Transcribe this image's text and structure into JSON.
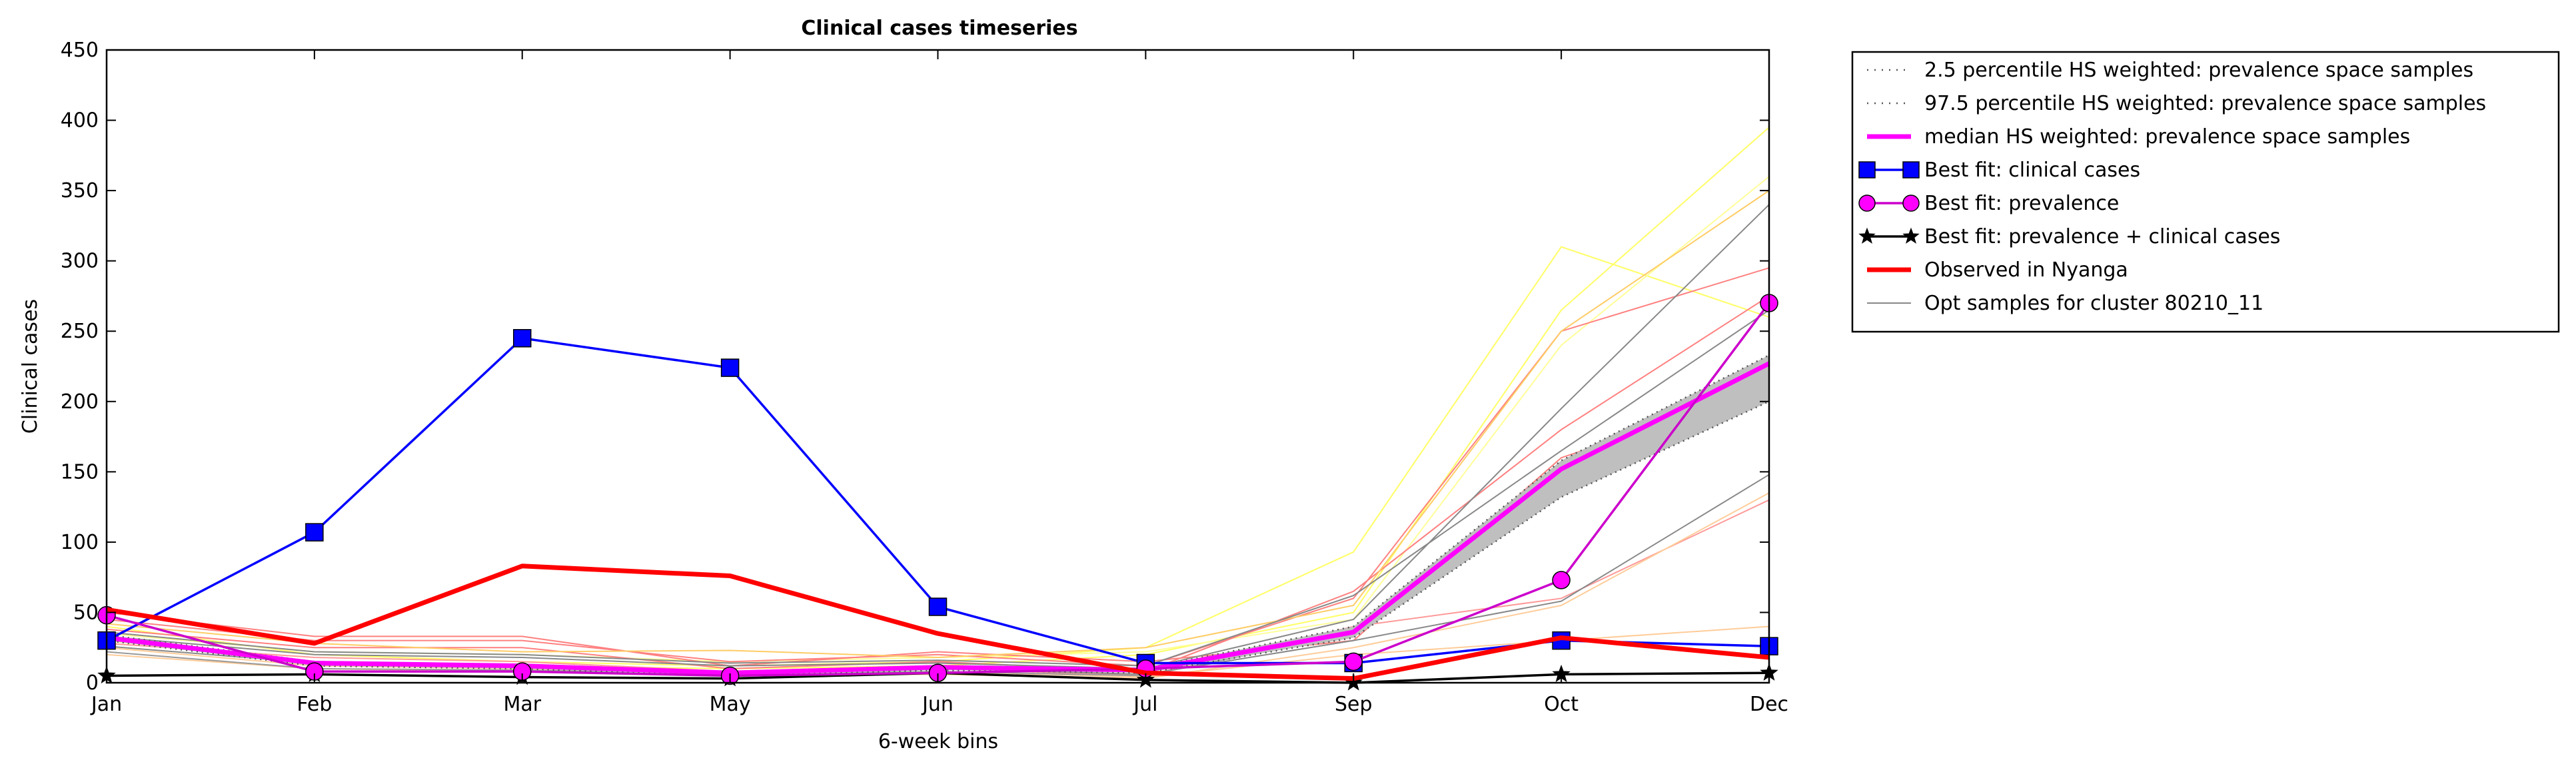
{
  "chart_data": {
    "type": "line",
    "title": "Clinical cases timeseries",
    "xlabel": "6-week bins",
    "ylabel": "Clinical cases",
    "categories": [
      "Jan",
      "Feb",
      "Mar",
      "May",
      "Jun",
      "Jul",
      "Sep",
      "Oct",
      "Dec"
    ],
    "ylim": [
      0,
      450
    ],
    "yticks": [
      0,
      50,
      100,
      150,
      200,
      250,
      300,
      350,
      400,
      450
    ],
    "legend_position": "outside-right-top",
    "band": {
      "lower_name": "2.5 percentile HS weighted: prevalence space samples",
      "upper_name": "97.5 percentile HS weighted: prevalence space samples",
      "lower": [
        30,
        12,
        10,
        5,
        9,
        7,
        32,
        132,
        200
      ],
      "upper": [
        34,
        15,
        13,
        8,
        12,
        10,
        40,
        158,
        233
      ],
      "fill_color": "#bfbfbf",
      "line_color": "#555555"
    },
    "series": [
      {
        "name": "median HS weighted: prevalence space samples",
        "values": [
          32,
          14,
          12,
          7,
          11,
          9,
          36,
          152,
          227
        ],
        "color": "#ff00ff",
        "marker": "none"
      },
      {
        "name": "Best fit: clinical cases",
        "values": [
          30,
          107,
          245,
          224,
          54,
          14,
          14,
          30,
          26
        ],
        "color": "#0000ff",
        "marker": "square"
      },
      {
        "name": "Best fit: prevalence",
        "values": [
          48,
          8,
          8,
          5,
          7,
          10,
          15,
          73,
          270
        ],
        "color": "#cc00cc",
        "marker_fill": "#ff00ff",
        "marker": "circle"
      },
      {
        "name": "Best fit: prevalence + clinical cases",
        "values": [
          5,
          6,
          4,
          3,
          7,
          2,
          0,
          6,
          7
        ],
        "color": "#000000",
        "marker": "star"
      },
      {
        "name": "Observed in Nyanga",
        "values": [
          52,
          28,
          83,
          76,
          35,
          7,
          3,
          32,
          18
        ],
        "color": "#ff0000",
        "marker": "none"
      }
    ],
    "samples": {
      "name": "Opt samples for cluster 80210_11",
      "legend_color": "#888888",
      "lines": [
        {
          "color": "#ffff66",
          "values": [
            40,
            20,
            15,
            12,
            15,
            25,
            93,
            310,
            260
          ]
        },
        {
          "color": "#ffff66",
          "values": [
            30,
            15,
            12,
            10,
            12,
            20,
            50,
            265,
            395
          ]
        },
        {
          "color": "#ffff99",
          "values": [
            35,
            22,
            20,
            15,
            18,
            22,
            45,
            240,
            360
          ]
        },
        {
          "color": "#ff8080",
          "values": [
            45,
            30,
            30,
            15,
            20,
            12,
            60,
            250,
            295
          ]
        },
        {
          "color": "#ff8080",
          "values": [
            38,
            25,
            25,
            10,
            15,
            8,
            65,
            180,
            275
          ]
        },
        {
          "color": "#ff9999",
          "values": [
            28,
            18,
            15,
            8,
            10,
            5,
            40,
            60,
            130
          ]
        },
        {
          "color": "#ff8080",
          "values": [
            50,
            33,
            33,
            12,
            22,
            15,
            30,
            160,
            210
          ]
        },
        {
          "color": "#ffcc99",
          "values": [
            25,
            12,
            10,
            6,
            8,
            4,
            20,
            30,
            40
          ]
        },
        {
          "color": "#ffcc66",
          "values": [
            42,
            28,
            22,
            23,
            18,
            25,
            55,
            250,
            350
          ]
        },
        {
          "color": "#ffcc99",
          "values": [
            20,
            10,
            8,
            5,
            6,
            3,
            25,
            55,
            135
          ]
        },
        {
          "color": "#888888",
          "values": [
            33,
            20,
            18,
            12,
            14,
            10,
            45,
            195,
            340
          ]
        },
        {
          "color": "#888888",
          "values": [
            26,
            14,
            12,
            8,
            10,
            6,
            30,
            58,
            148
          ]
        },
        {
          "color": "#888888",
          "values": [
            36,
            22,
            20,
            14,
            16,
            12,
            62,
            165,
            265
          ]
        },
        {
          "color": "#999999",
          "values": [
            22,
            10,
            9,
            6,
            8,
            5,
            35,
            140,
            225
          ]
        }
      ]
    }
  }
}
